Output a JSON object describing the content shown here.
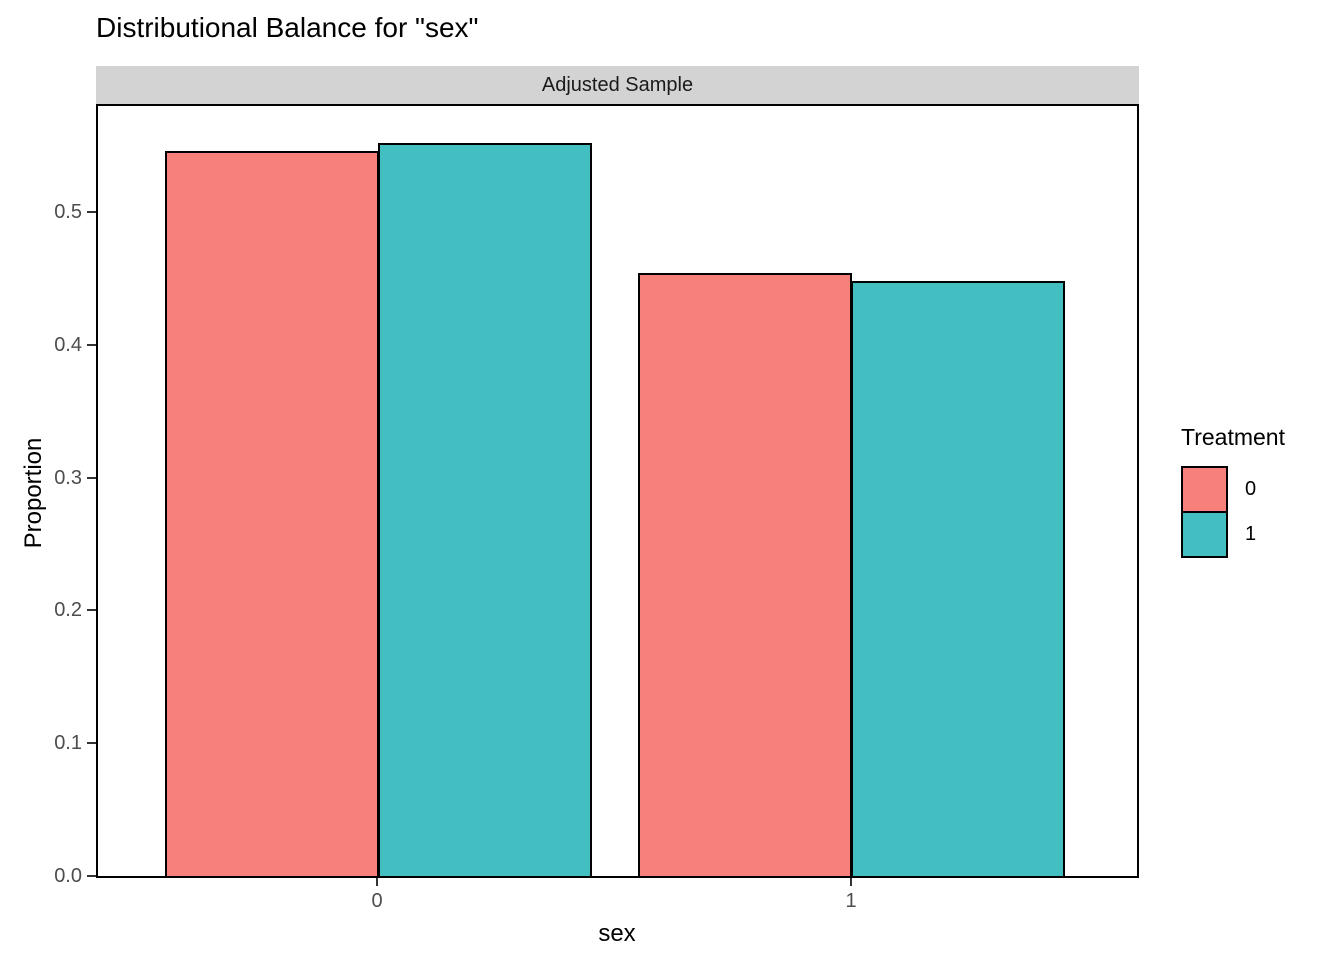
{
  "title": "Distributional Balance for \"sex\"",
  "facet": {
    "label": "Adjusted Sample"
  },
  "axes": {
    "y_title": "Proportion",
    "x_title": "sex",
    "y_ticks": [
      {
        "label": "0.5",
        "value": 0.5
      },
      {
        "label": "0.4",
        "value": 0.4
      },
      {
        "label": "0.3",
        "value": 0.3
      },
      {
        "label": "0.2",
        "value": 0.2
      },
      {
        "label": "0.1",
        "value": 0.1
      },
      {
        "label": "0.0",
        "value": 0.0
      }
    ],
    "x_ticks": [
      {
        "label": "0"
      },
      {
        "label": "1"
      }
    ]
  },
  "legend": {
    "title": "Treatment",
    "items": [
      {
        "label": "0",
        "color": "#f7807a"
      },
      {
        "label": "1",
        "color": "#44bfc1"
      }
    ]
  },
  "colors": {
    "treatment_0": "#f7807a",
    "treatment_1": "#44bfc1",
    "strip_background": "#d3d3d3",
    "panel_border": "#000000",
    "tick_label": "#4d4d4d"
  },
  "chart_data": {
    "type": "bar",
    "title": "Distributional Balance for \"sex\"",
    "facet_label": "Adjusted Sample",
    "categories": [
      "0",
      "1"
    ],
    "series": [
      {
        "name": "0",
        "color": "#f7807a",
        "values": [
          0.546,
          0.454
        ]
      },
      {
        "name": "1",
        "color": "#44bfc1",
        "values": [
          0.552,
          0.448
        ]
      }
    ],
    "xlabel": "sex",
    "ylabel": "Proportion",
    "ylim": [
      0,
      0.58
    ],
    "y_tick_step": 0.1,
    "grid": false,
    "bar_outline": "#000000",
    "legend_title": "Treatment",
    "legend_position": "right"
  }
}
